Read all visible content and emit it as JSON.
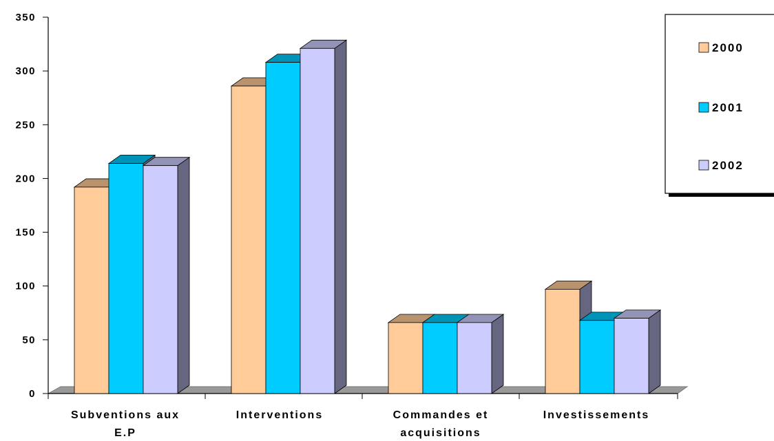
{
  "chart_data": {
    "type": "bar",
    "categories": [
      [
        "Subventions aux",
        "E.P"
      ],
      [
        "Interventions"
      ],
      [
        "Commandes et",
        "acquisitions"
      ],
      [
        "Investissements"
      ]
    ],
    "series": [
      {
        "name": "2000",
        "values": [
          192,
          286,
          66,
          97
        ],
        "color": "#FFCC99"
      },
      {
        "name": "2001",
        "values": [
          214,
          308,
          66,
          68
        ],
        "color": "#00CCFF"
      },
      {
        "name": "2002",
        "values": [
          212,
          321,
          66,
          70
        ],
        "color": "#CCCCFF"
      }
    ],
    "yticks": [
      0,
      50,
      100,
      150,
      200,
      250,
      300,
      350
    ],
    "ylim": [
      0,
      350
    ],
    "title": "",
    "xlabel": "",
    "ylabel": "",
    "legend_position": "top-right",
    "grid": false,
    "style": "3d-clustered-column"
  }
}
